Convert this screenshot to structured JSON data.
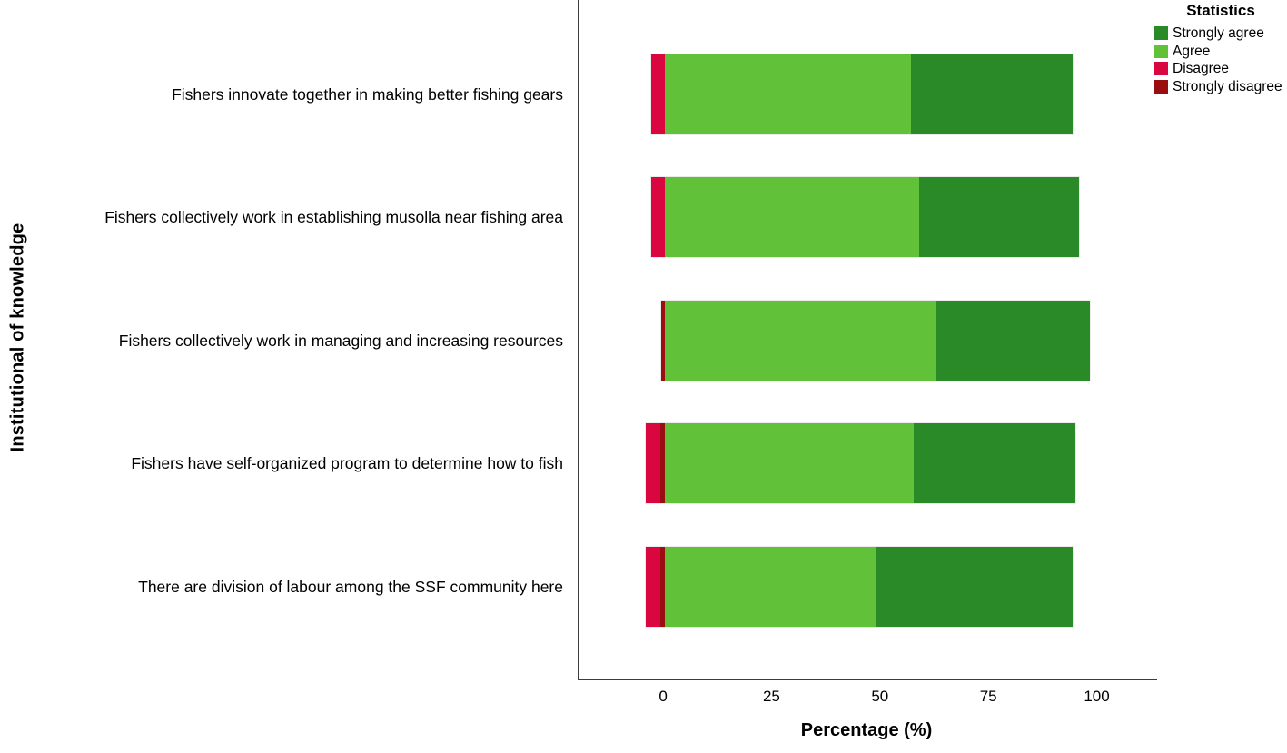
{
  "figure": {
    "y_axis_title": "Institutional of knowledge",
    "x_axis_title": "Percentage (%)"
  },
  "legend": {
    "title": "Statistics",
    "items": [
      {
        "label": "Strongly agree",
        "color": "#2A8A28"
      },
      {
        "label": "Agree",
        "color": "#61C23A"
      },
      {
        "label": "Disagree",
        "color": "#D9063F"
      },
      {
        "label": "Strongly disagree",
        "color": "#9A0D10"
      }
    ]
  },
  "chart_data": {
    "type": "bar",
    "orientation": "horizontal",
    "stacked": true,
    "diverging": true,
    "title": "",
    "xlabel": "Percentage (%)",
    "ylabel": "Institutional of knowledge",
    "xlim": [
      -19.7,
      113.5
    ],
    "x_ticks": [
      0,
      25,
      50,
      75,
      100
    ],
    "grid": false,
    "legend_title": "Statistics",
    "legend_position": "top-right",
    "categories": [
      "Fishers innovate together in making better fishing gears",
      "Fishers collectively work in establishing musolla near fishing area",
      "Fishers collectively work in managing and increasing resources",
      "Fishers have self-organized program to determine how to fish",
      "There are division of labour among the SSF community here"
    ],
    "series": [
      {
        "name": "Strongly agree",
        "color": "#2A8A28",
        "values": [
          37.4,
          36.7,
          35.4,
          37.3,
          45.5
        ]
      },
      {
        "name": "Agree",
        "color": "#61C23A",
        "values": [
          56.7,
          58.7,
          62.7,
          57.3,
          48.5
        ]
      },
      {
        "name": "Disagree",
        "color": "#D9063F",
        "values": [
          3.1,
          3.1,
          0,
          3.3,
          3.3
        ]
      },
      {
        "name": "Strongly disagree",
        "color": "#9A0D10",
        "values": [
          0,
          0,
          0.8,
          1.1,
          1.1
        ]
      }
    ]
  }
}
